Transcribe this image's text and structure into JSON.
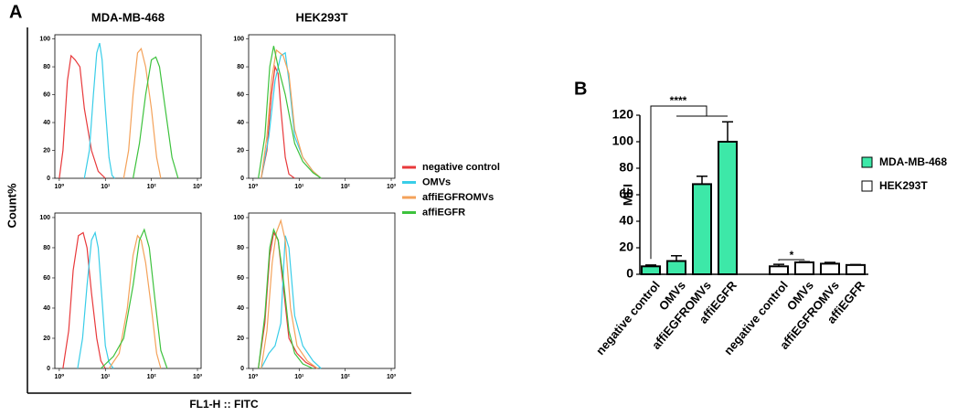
{
  "figure": {
    "panel_labels": [
      "A",
      "B"
    ],
    "column_titles": [
      "MDA-MB-468",
      "HEK293T"
    ],
    "y_label": "Count%",
    "x_label": "FL1-H :: FITC"
  },
  "legend": {
    "items": [
      {
        "name": "negative control",
        "color": "#e8393b"
      },
      {
        "name": "OMVs",
        "color": "#39cde8"
      },
      {
        "name": "affiEGFROMVs",
        "color": "#f4a25a"
      },
      {
        "name": "affiEGFR",
        "color": "#3dc23d"
      }
    ]
  },
  "chart_data": [
    {
      "type": "line",
      "log_x": true,
      "xlim": [
        0.8,
        1200
      ],
      "ylim": [
        0,
        103
      ],
      "xticks": [
        {
          "value": 1,
          "label": "10⁰"
        },
        {
          "value": 10,
          "label": "10¹"
        },
        {
          "value": 100,
          "label": "10²"
        },
        {
          "value": 1000,
          "label": "10³"
        }
      ],
      "yticks": [
        0,
        20,
        40,
        60,
        80,
        100
      ],
      "series": [
        {
          "color": "#e8393b",
          "x": [
            1,
            1.2,
            1.5,
            1.8,
            2.2,
            2.8,
            3.5,
            5,
            7,
            10
          ],
          "values": [
            0,
            20,
            70,
            88,
            85,
            80,
            50,
            20,
            5,
            0
          ]
        },
        {
          "color": "#39cde8",
          "x": [
            3.5,
            4.5,
            5.5,
            6.5,
            7.5,
            8.5,
            10,
            12,
            14,
            16
          ],
          "values": [
            0,
            20,
            60,
            90,
            97,
            85,
            50,
            15,
            2,
            0
          ]
        },
        {
          "color": "#f4a25a",
          "x": [
            25,
            32,
            40,
            50,
            60,
            75,
            100,
            130,
            160
          ],
          "values": [
            0,
            20,
            60,
            90,
            93,
            80,
            50,
            15,
            0
          ]
        },
        {
          "color": "#3dc23d",
          "x": [
            40,
            55,
            75,
            100,
            125,
            150,
            200,
            280,
            380
          ],
          "values": [
            0,
            25,
            60,
            85,
            87,
            80,
            50,
            15,
            0
          ]
        }
      ]
    },
    {
      "type": "line",
      "log_x": true,
      "xlim": [
        0.8,
        1200
      ],
      "ylim": [
        0,
        103
      ],
      "xticks": [
        {
          "value": 1,
          "label": "10⁰"
        },
        {
          "value": 10,
          "label": "10¹"
        },
        {
          "value": 100,
          "label": "10²"
        },
        {
          "value": 1000,
          "label": "10³"
        }
      ],
      "yticks": [
        0,
        20,
        40,
        60,
        80,
        100
      ],
      "series": [
        {
          "color": "#e8393b",
          "x": [
            1.5,
            2,
            2.5,
            3,
            3.5,
            4,
            5,
            6,
            8
          ],
          "values": [
            0,
            20,
            60,
            80,
            75,
            50,
            15,
            3,
            0
          ]
        },
        {
          "color": "#39cde8",
          "x": [
            1.5,
            2.2,
            3,
            4,
            5,
            6,
            8,
            12,
            20,
            30
          ],
          "values": [
            0,
            30,
            70,
            88,
            90,
            70,
            30,
            15,
            5,
            0
          ]
        },
        {
          "color": "#f4a25a",
          "x": [
            1.5,
            2,
            2.5,
            3.2,
            4.5,
            6,
            8,
            12,
            20,
            30
          ],
          "values": [
            0,
            30,
            70,
            92,
            88,
            75,
            35,
            15,
            5,
            0
          ]
        },
        {
          "color": "#3dc23d",
          "x": [
            1.3,
            1.8,
            2.3,
            2.8,
            3.5,
            5,
            8,
            12,
            20,
            30
          ],
          "values": [
            0,
            30,
            80,
            95,
            80,
            60,
            25,
            12,
            4,
            0
          ]
        }
      ]
    },
    {
      "type": "line",
      "log_x": true,
      "xlim": [
        0.8,
        1200
      ],
      "ylim": [
        0,
        103
      ],
      "xticks": [
        {
          "value": 1,
          "label": "10⁰"
        },
        {
          "value": 10,
          "label": "10¹"
        },
        {
          "value": 100,
          "label": "10²"
        },
        {
          "value": 1000,
          "label": "10³"
        }
      ],
      "yticks": [
        0,
        20,
        40,
        60,
        80,
        100
      ],
      "series": [
        {
          "color": "#e8393b",
          "x": [
            1.2,
            1.6,
            2,
            2.6,
            3.3,
            4,
            5,
            6.5,
            8,
            10
          ],
          "values": [
            0,
            25,
            65,
            88,
            90,
            80,
            50,
            20,
            5,
            0
          ]
        },
        {
          "color": "#39cde8",
          "x": [
            2.5,
            3.2,
            4,
            5,
            6,
            7,
            8.5,
            10,
            12,
            15
          ],
          "values": [
            0,
            20,
            55,
            85,
            90,
            80,
            45,
            15,
            4,
            0
          ]
        },
        {
          "color": "#f4a25a",
          "x": [
            12,
            20,
            30,
            40,
            50,
            60,
            75,
            100,
            130,
            160
          ],
          "values": [
            0,
            10,
            40,
            75,
            88,
            85,
            70,
            40,
            10,
            0
          ]
        },
        {
          "color": "#3dc23d",
          "x": [
            8,
            15,
            25,
            40,
            55,
            70,
            90,
            120,
            160,
            220
          ],
          "values": [
            0,
            8,
            20,
            55,
            85,
            92,
            80,
            45,
            12,
            0
          ]
        }
      ]
    },
    {
      "type": "line",
      "log_x": true,
      "xlim": [
        0.8,
        1200
      ],
      "ylim": [
        0,
        103
      ],
      "xticks": [
        {
          "value": 1,
          "label": "10⁰"
        },
        {
          "value": 10,
          "label": "10¹"
        },
        {
          "value": 100,
          "label": "10²"
        },
        {
          "value": 1000,
          "label": "10³"
        }
      ],
      "yticks": [
        0,
        20,
        40,
        60,
        80,
        100
      ],
      "series": [
        {
          "color": "#e8393b",
          "x": [
            1.3,
            1.8,
            2.3,
            2.8,
            3.5,
            4.5,
            6,
            9,
            14,
            25
          ],
          "values": [
            0,
            30,
            75,
            90,
            85,
            55,
            20,
            10,
            4,
            0
          ]
        },
        {
          "color": "#39cde8",
          "x": [
            1.5,
            2.2,
            3,
            4,
            5,
            6,
            8,
            12,
            20,
            30
          ],
          "values": [
            0,
            10,
            15,
            30,
            88,
            80,
            35,
            15,
            5,
            0
          ]
        },
        {
          "color": "#f4a25a",
          "x": [
            1.5,
            2,
            2.6,
            3.2,
            4,
            5,
            6.5,
            9,
            15,
            25
          ],
          "values": [
            0,
            25,
            70,
            90,
            98,
            85,
            40,
            15,
            5,
            0
          ]
        },
        {
          "color": "#3dc23d",
          "x": [
            1.3,
            1.8,
            2.3,
            2.8,
            3.5,
            4.5,
            6,
            8,
            12,
            20
          ],
          "values": [
            0,
            35,
            80,
            92,
            85,
            60,
            25,
            10,
            3,
            0
          ]
        }
      ]
    },
    {
      "type": "bar",
      "y_label": "MFI",
      "ylim": [
        0,
        120
      ],
      "yticks": [
        0,
        20,
        40,
        60,
        80,
        100,
        120
      ],
      "categories": [
        "negative control",
        "OMVs",
        "affiEGFROMVs",
        "affiEGFR",
        "negative control",
        "OMVs",
        "affiEGFROMVs",
        "affiEGFR"
      ],
      "series": [
        {
          "name": "MDA-MB-468",
          "color": "#3de8a8",
          "values": [
            6,
            10,
            68,
            100,
            null,
            null,
            null,
            null
          ],
          "errors": [
            1,
            4,
            6,
            15,
            null,
            null,
            null,
            null
          ]
        },
        {
          "name": "HEK293T",
          "color": "#ffffff",
          "values": [
            null,
            null,
            null,
            null,
            6,
            9,
            8,
            7
          ],
          "errors": [
            null,
            null,
            null,
            null,
            1.5,
            0.5,
            1,
            0.3
          ]
        }
      ],
      "annotations": [
        "****",
        "*"
      ]
    }
  ]
}
